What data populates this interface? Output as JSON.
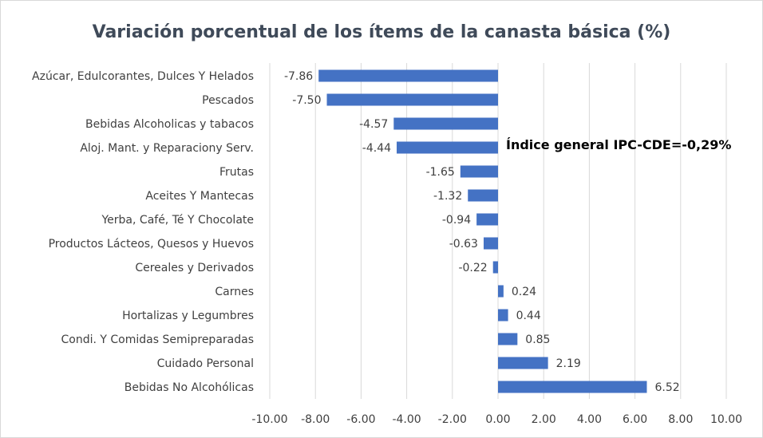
{
  "chart_data": {
    "type": "bar",
    "orientation": "horizontal",
    "title": "Variación porcentual de los ítems de la canasta básica (%)",
    "xlabel": "",
    "ylabel": "",
    "annotation": "Índice general IPC-CDE=-0,29%",
    "categories": [
      "Azúcar, Edulcorantes, Dulces Y Helados",
      "Pescados",
      "Bebidas Alcoholicas y tabacos",
      "Aloj. Mant. y Reparaciony Serv.",
      "Frutas",
      "Aceites Y Mantecas",
      "Yerba, Café, Té Y Chocolate",
      "Productos Lácteos, Quesos y Huevos",
      "Cereales y Derivados",
      "Carnes",
      "Hortalizas y Legumbres",
      "Condi. Y Comidas Semipreparadas",
      "Cuidado Personal",
      "Bebidas No Alcohólicas"
    ],
    "values": [
      -7.86,
      -7.5,
      -4.57,
      -4.44,
      -1.65,
      -1.32,
      -0.94,
      -0.63,
      -0.22,
      0.24,
      0.44,
      0.85,
      2.19,
      6.52
    ],
    "value_labels": [
      "-7.86",
      "-7.50",
      "-4.57",
      "-4.44",
      "-1.65",
      "-1.32",
      "-0.94",
      "-0.63",
      "-0.22",
      "0.24",
      "0.44",
      "0.85",
      "2.19",
      "6.52"
    ],
    "xlim": [
      -10,
      10
    ],
    "x_ticks": [
      -10,
      -8,
      -6,
      -4,
      -2,
      0,
      2,
      4,
      6,
      8,
      10
    ],
    "x_tick_labels": [
      "-10.00",
      "-8.00",
      "-6.00",
      "-4.00",
      "-2.00",
      "0.00",
      "2.00",
      "4.00",
      "6.00",
      "8.00",
      "10.00"
    ],
    "grid": true,
    "legend": "none",
    "bar_color": "#4472c4",
    "gridline_color": "#d9d9d9",
    "title_color": "#3f4a59"
  }
}
